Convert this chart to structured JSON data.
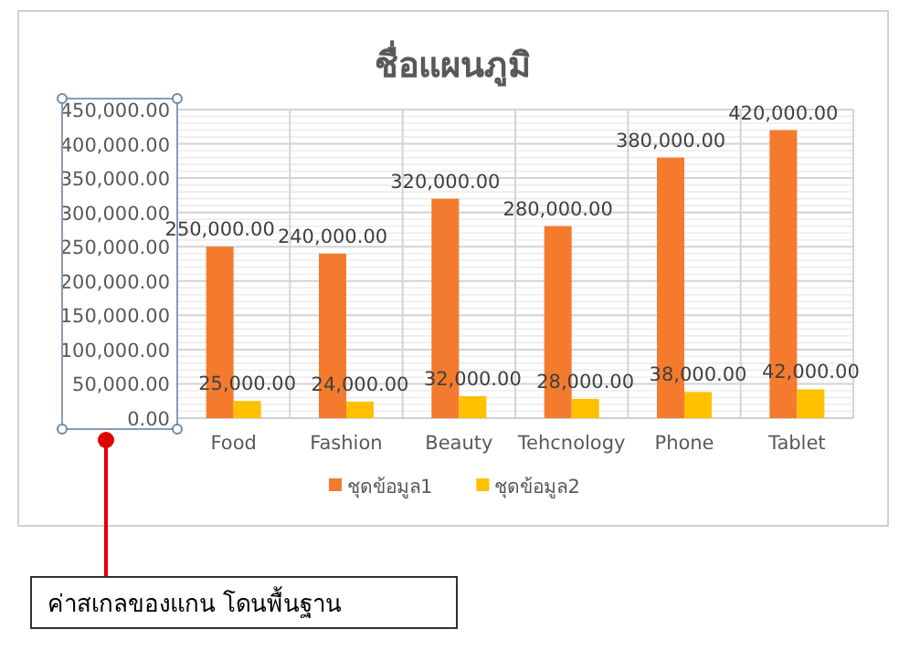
{
  "chart_data": {
    "type": "bar",
    "title": "ชื่อแผนภูมิ",
    "categories": [
      "Food",
      "Fashion",
      "Beauty",
      "Tehcnology",
      "Phone",
      "Tablet"
    ],
    "series": [
      {
        "name": "ชุดข้อมูล1",
        "color": "#f47b2e",
        "values": [
          250000,
          240000,
          320000,
          280000,
          380000,
          420000
        ],
        "value_labels": [
          "250,000.00",
          "240,000.00",
          "320,000.00",
          "280,000.00",
          "380,000.00",
          "420,000.00"
        ]
      },
      {
        "name": "ชุดข้อมูล2",
        "color": "#ffc000",
        "values": [
          25000,
          24000,
          32000,
          28000,
          38000,
          42000
        ],
        "value_labels": [
          "25,000.00",
          "24,000.00",
          "32,000.00",
          "28,000.00",
          "38,000.00",
          "42,000.00"
        ]
      }
    ],
    "ylim": [
      0,
      450000
    ],
    "yticks": [
      {
        "value": 0,
        "label": "0.00"
      },
      {
        "value": 50000,
        "label": "50,000.00"
      },
      {
        "value": 100000,
        "label": "100,000.00"
      },
      {
        "value": 150000,
        "label": "150,000.00"
      },
      {
        "value": 200000,
        "label": "200,000.00"
      },
      {
        "value": 250000,
        "label": "250,000.00"
      },
      {
        "value": 300000,
        "label": "300,000.00"
      },
      {
        "value": 350000,
        "label": "350,000.00"
      },
      {
        "value": 400000,
        "label": "400,000.00"
      },
      {
        "value": 450000,
        "label": "450,000.00"
      }
    ],
    "grid": true,
    "legend": "bottom",
    "annotations": [
      "ค่าสเกลของแกน โดนพื้นฐาน"
    ]
  }
}
